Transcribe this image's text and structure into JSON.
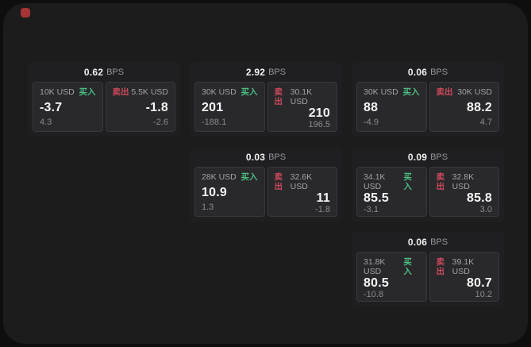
{
  "app": {
    "logo_color": "#a63434"
  },
  "colors": {
    "buy_accent": "#4cbe82",
    "sell_accent": "#cc4a5c"
  },
  "labels": {
    "bps_unit": "BPS",
    "buy": "买入",
    "sell": "卖出"
  },
  "cards": [
    {
      "row": 0,
      "col": 0,
      "bps_value": "0.62",
      "bps_unit": "BPS",
      "buy": {
        "amount": "10K USD",
        "side": "买入",
        "value": "-3.7",
        "delta": "4.3"
      },
      "sell": {
        "side": "卖出",
        "amount": "5.5K USD",
        "value": "-1.8",
        "delta": "-2.6"
      }
    },
    {
      "row": 0,
      "col": 1,
      "bps_value": "2.92",
      "bps_unit": "BPS",
      "buy": {
        "amount": "30K USD",
        "side": "买入",
        "value": "201",
        "delta": "-188.1"
      },
      "sell": {
        "side": "卖出",
        "amount": "30.1K USD",
        "value": "210",
        "delta": "196.5"
      }
    },
    {
      "row": 0,
      "col": 2,
      "bps_value": "0.06",
      "bps_unit": "BPS",
      "buy": {
        "amount": "30K USD",
        "side": "买入",
        "value": "88",
        "delta": "-4.9"
      },
      "sell": {
        "side": "卖出",
        "amount": "30K USD",
        "value": "88.2",
        "delta": "4.7"
      }
    },
    {
      "row": 1,
      "col": 1,
      "bps_value": "0.03",
      "bps_unit": "BPS",
      "buy": {
        "amount": "28K USD",
        "side": "买入",
        "value": "10.9",
        "delta": "1.3"
      },
      "sell": {
        "side": "卖出",
        "amount": "32.6K USD",
        "value": "11",
        "delta": "-1.8"
      }
    },
    {
      "row": 1,
      "col": 2,
      "bps_value": "0.09",
      "bps_unit": "BPS",
      "buy": {
        "amount": "34.1K USD",
        "side": "买入",
        "value": "85.5",
        "delta": "-3.1"
      },
      "sell": {
        "side": "卖出",
        "amount": "32.8K USD",
        "value": "85.8",
        "delta": "3.0"
      }
    },
    {
      "row": 2,
      "col": 2,
      "bps_value": "0.06",
      "bps_unit": "BPS",
      "buy": {
        "amount": "31.8K USD",
        "side": "买入",
        "value": "80.5",
        "delta": "-10.8"
      },
      "sell": {
        "side": "卖出",
        "amount": "39.1K USD",
        "value": "80.7",
        "delta": "10.2"
      }
    }
  ]
}
